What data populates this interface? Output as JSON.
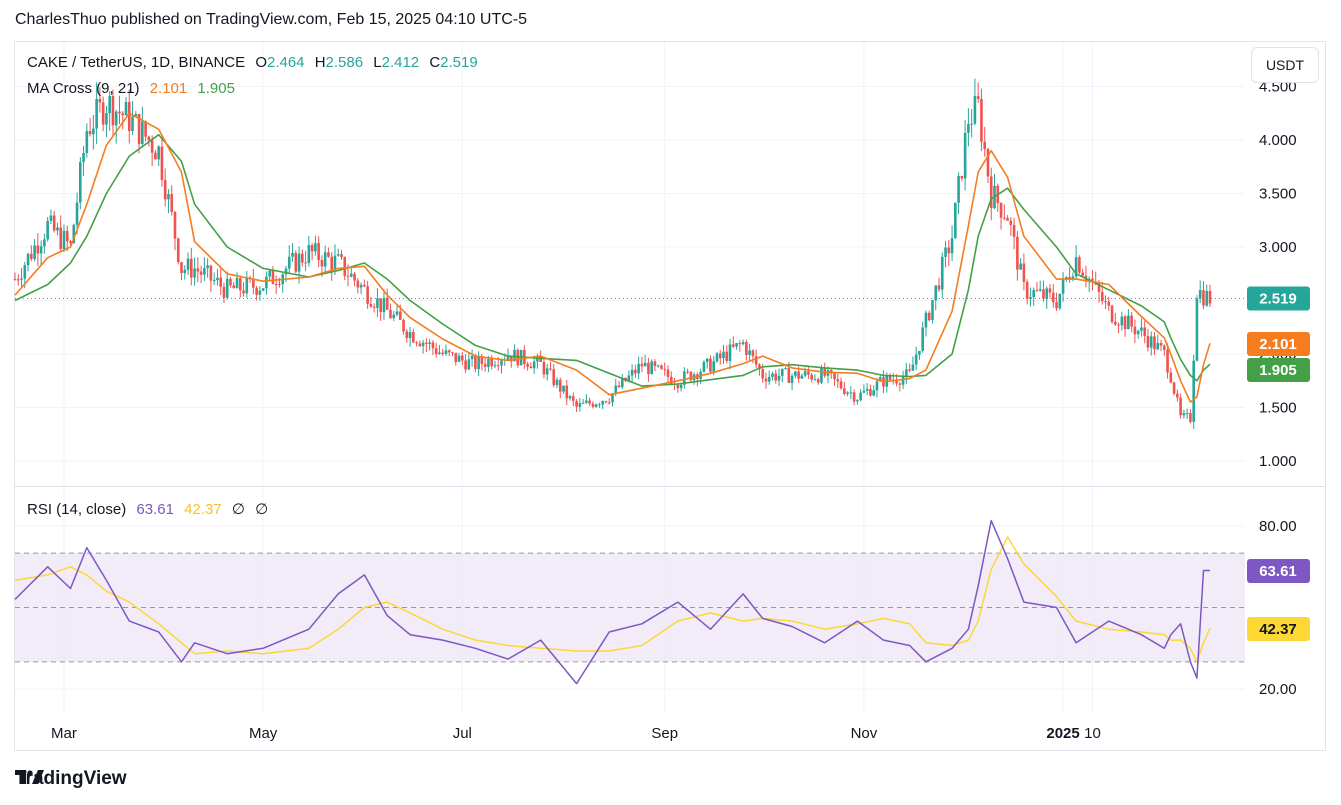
{
  "header": {
    "publisher_line": "CharlesThuo published on TradingView.com, Feb 15, 2025 04:10 UTC-5"
  },
  "legend": {
    "symbol": "CAKE / TetherUS, 1D, BINANCE",
    "open_label": "O",
    "open": "2.464",
    "high_label": "H",
    "high": "2.586",
    "low_label": "L",
    "low": "2.412",
    "close_label": "C",
    "close": "2.519",
    "ma_title": "MA Cross (9, 21)",
    "ma_fast": "2.101",
    "ma_slow": "1.905",
    "rsi_title": "RSI (14, close)",
    "rsi_value": "63.61",
    "rsi_ma": "42.37",
    "rsi_extra1": "∅",
    "rsi_extra2": "∅"
  },
  "currency_button": "USDT",
  "footer": {
    "brand": "TradingView"
  },
  "colors": {
    "up": "#26a69a",
    "down": "#ef5350",
    "ma_fast": "#f57c1f",
    "ma_slow": "#43a047",
    "rsi": "#7e57c2",
    "rsi_ma": "#fdd835",
    "rsi_band": "#ede7f6",
    "price_line": "#26a69a"
  },
  "chart_data": [
    {
      "type": "candlestick",
      "title": "CAKE / TetherUS, 1D, BINANCE",
      "ylabel": "USDT",
      "ylim": [
        0.8,
        4.75
      ],
      "y_ticks": [
        "1.000",
        "1.500",
        "2.000",
        "2.500",
        "3.000",
        "3.500",
        "4.000",
        "4.500"
      ],
      "x_ticks": [
        "Mar",
        "May",
        "Jul",
        "Sep",
        "Nov",
        "2025",
        "10"
      ],
      "grid": true,
      "last_price": "2.519",
      "ma_fast_value": "2.101",
      "ma_slow_value": "1.905",
      "close_series": {
        "dates": [
          "2024-02-15",
          "2024-02-25",
          "2024-03-03",
          "2024-03-08",
          "2024-03-14",
          "2024-03-21",
          "2024-03-30",
          "2024-04-06",
          "2024-04-10",
          "2024-04-20",
          "2024-05-01",
          "2024-05-15",
          "2024-05-24",
          "2024-06-01",
          "2024-06-08",
          "2024-06-15",
          "2024-06-25",
          "2024-07-05",
          "2024-07-15",
          "2024-07-25",
          "2024-08-05",
          "2024-08-15",
          "2024-08-25",
          "2024-09-05",
          "2024-09-15",
          "2024-09-25",
          "2024-10-01",
          "2024-10-10",
          "2024-10-20",
          "2024-10-30",
          "2024-11-07",
          "2024-11-15",
          "2024-11-20",
          "2024-11-28",
          "2024-12-03",
          "2024-12-06",
          "2024-12-10",
          "2024-12-15",
          "2024-12-20",
          "2024-12-30",
          "2025-01-05",
          "2025-01-15",
          "2025-01-25",
          "2025-02-01",
          "2025-02-03",
          "2025-02-06",
          "2025-02-09",
          "2025-02-11",
          "2025-02-13",
          "2025-02-15"
        ],
        "values": [
          2.7,
          3.2,
          3.0,
          4.1,
          4.35,
          4.2,
          3.9,
          2.8,
          2.8,
          2.6,
          2.65,
          2.95,
          2.85,
          2.6,
          2.4,
          2.2,
          2.0,
          1.9,
          2.0,
          1.9,
          1.5,
          1.6,
          1.9,
          1.75,
          1.9,
          2.1,
          1.8,
          1.8,
          1.8,
          1.6,
          1.75,
          1.8,
          2.3,
          3.1,
          4.2,
          4.3,
          3.5,
          3.3,
          2.6,
          2.5,
          2.9,
          2.4,
          2.2,
          2.0,
          1.8,
          1.4,
          1.4,
          2.6,
          2.55,
          2.52
        ]
      },
      "ma_fast_series": [
        2.55,
        2.9,
        3.0,
        3.4,
        3.95,
        4.25,
        4.1,
        3.7,
        3.05,
        2.75,
        2.68,
        2.72,
        2.8,
        2.82,
        2.55,
        2.34,
        2.14,
        1.98,
        1.94,
        1.98,
        1.85,
        1.62,
        1.68,
        1.75,
        1.82,
        1.91,
        1.98,
        1.87,
        1.83,
        1.82,
        1.74,
        1.77,
        1.85,
        2.4,
        3.2,
        3.7,
        3.9,
        3.65,
        3.1,
        2.7,
        2.7,
        2.65,
        2.35,
        2.15,
        2.0,
        1.75,
        1.55,
        1.6,
        1.9,
        2.1
      ],
      "ma_slow_series": [
        2.5,
        2.65,
        2.85,
        3.1,
        3.5,
        3.85,
        4.05,
        3.8,
        3.4,
        3.0,
        2.8,
        2.72,
        2.78,
        2.85,
        2.7,
        2.5,
        2.28,
        2.08,
        1.98,
        1.96,
        1.94,
        1.82,
        1.7,
        1.72,
        1.76,
        1.8,
        1.88,
        1.9,
        1.87,
        1.85,
        1.8,
        1.79,
        1.8,
        2.0,
        2.6,
        3.1,
        3.45,
        3.55,
        3.35,
        3.0,
        2.75,
        2.6,
        2.45,
        2.3,
        2.15,
        1.95,
        1.8,
        1.75,
        1.85,
        1.905
      ]
    },
    {
      "type": "line",
      "title": "RSI (14, close)",
      "ylim": [
        10,
        95
      ],
      "y_ticks": [
        "20.00",
        "80.00"
      ],
      "bands": [
        30,
        50,
        70
      ],
      "rsi_series": [
        53,
        65,
        57,
        72,
        60,
        45,
        41,
        30,
        37,
        33,
        35,
        42,
        55,
        62,
        47,
        40,
        38,
        35,
        31,
        38,
        22,
        41,
        44,
        52,
        42,
        55,
        46,
        43,
        37,
        45,
        38,
        36,
        30,
        35,
        42,
        58,
        82,
        68,
        52,
        50,
        37,
        45,
        40,
        35,
        40,
        44,
        30,
        24,
        63.61,
        63.61
      ],
      "rsi_ma_series": [
        60,
        62,
        65,
        62,
        56,
        52,
        44,
        37,
        33,
        34,
        33,
        35,
        42,
        50,
        52,
        48,
        42,
        38,
        36,
        35,
        34,
        34,
        36,
        45,
        48,
        45,
        46,
        45,
        42,
        44,
        46,
        44,
        37,
        36,
        38,
        45,
        64,
        76,
        66,
        54,
        45,
        42,
        41,
        40,
        38,
        38,
        35,
        30,
        37,
        42.37
      ]
    }
  ]
}
